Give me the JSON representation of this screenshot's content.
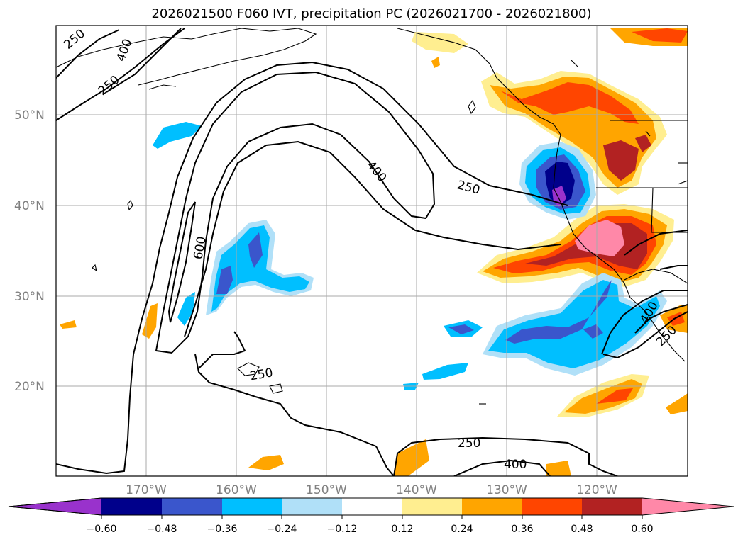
{
  "title": "2026021500 F060 IVT, precipitation PC (2026021700 - 2026021800)",
  "map": {
    "lat_labels": [
      {
        "value": 50,
        "label": "50°N"
      },
      {
        "value": 40,
        "label": "40°N"
      },
      {
        "value": 30,
        "label": "30°N"
      },
      {
        "value": 20,
        "label": "20°N"
      }
    ],
    "lon_labels": [
      {
        "value": -170,
        "label": "170°W"
      },
      {
        "value": -160,
        "label": "160°W"
      },
      {
        "value": -150,
        "label": "150°W"
      },
      {
        "value": -140,
        "label": "140°W"
      },
      {
        "value": -130,
        "label": "130°W"
      },
      {
        "value": -120,
        "label": "120°W"
      }
    ],
    "ivt_contour_labels": [
      {
        "text": "250",
        "name": "ivt-label-250-northwest"
      },
      {
        "text": "400",
        "name": "ivt-label-400-northwest"
      },
      {
        "text": "250",
        "name": "ivt-label-250-northwest-inner"
      },
      {
        "text": "600",
        "name": "ivt-label-600-west"
      },
      {
        "text": "400",
        "name": "ivt-label-400-arc"
      },
      {
        "text": "250",
        "name": "ivt-label-250-arc"
      },
      {
        "text": "250",
        "name": "ivt-label-250-hawaii"
      },
      {
        "text": "250",
        "name": "ivt-label-250-south"
      },
      {
        "text": "400",
        "name": "ivt-label-400-south"
      },
      {
        "text": "400",
        "name": "ivt-label-400-mexico"
      },
      {
        "text": "250",
        "name": "ivt-label-250-mexico"
      }
    ]
  },
  "colorbar": {
    "ticks": [
      "−0.60",
      "−0.48",
      "−0.36",
      "−0.24",
      "−0.12",
      "0.12",
      "0.24",
      "0.36",
      "0.48",
      "0.60"
    ],
    "colors": {
      "under": "#9932cc",
      "bins": [
        "#00008b",
        "#3a56cc",
        "#00bfff",
        "#b0e0f8",
        "#ffffff",
        "#ffee90",
        "#ffa500",
        "#ff4500",
        "#b22222",
        "#ff88a8"
      ]
    }
  }
}
